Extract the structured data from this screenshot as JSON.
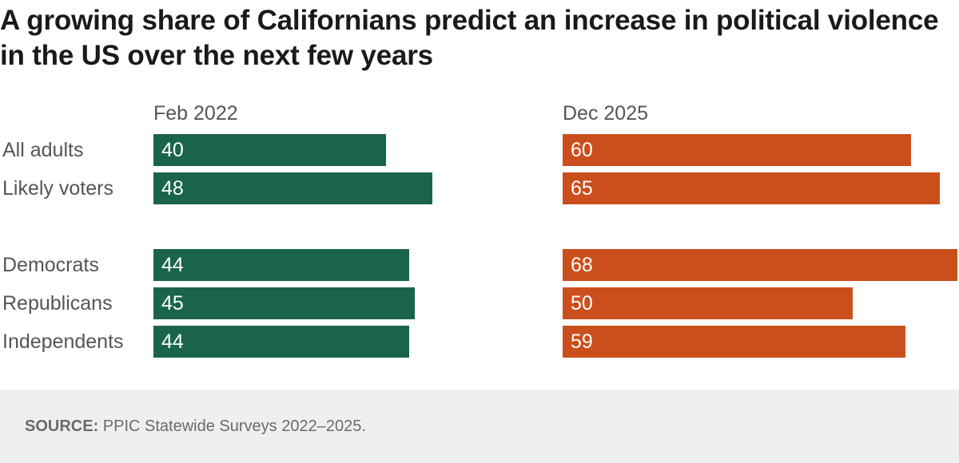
{
  "title": "A growing share of Californians predict an increase in political violence in the US over the next few years",
  "colors": {
    "left": "#1a644b",
    "right": "#cb4f1c"
  },
  "source": {
    "label": "SOURCE:",
    "text": "PPIC Statewide Surveys 2022–2025."
  },
  "chart_data": {
    "type": "bar",
    "orientation": "horizontal",
    "title": "A growing share of Californians predict an increase in political violence in the US over the next few years",
    "categories": [
      "All adults",
      "Likely voters",
      "Democrats",
      "Republicans",
      "Independents"
    ],
    "series": [
      {
        "name": "Feb 2022",
        "values": [
          40,
          48,
          44,
          45,
          44
        ]
      },
      {
        "name": "Dec 2025",
        "values": [
          60,
          65,
          68,
          50,
          59
        ]
      }
    ],
    "xlim": [
      0,
      68
    ],
    "grid": false,
    "legend": "none"
  }
}
